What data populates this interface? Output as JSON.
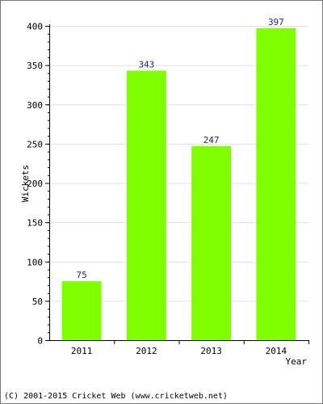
{
  "chart_data": {
    "type": "bar",
    "categories": [
      "2011",
      "2012",
      "2013",
      "2014"
    ],
    "values": [
      75,
      343,
      247,
      397
    ],
    "xlabel": "Year",
    "ylabel": "Wickets",
    "ylim": [
      0,
      400
    ],
    "yticks": [
      0,
      50,
      100,
      150,
      200,
      250,
      300,
      350,
      400
    ],
    "grid": true,
    "legend": "none",
    "bar_color": "#80ff00"
  },
  "footer": "(C) 2001-2015 Cricket Web (www.cricketweb.net)"
}
